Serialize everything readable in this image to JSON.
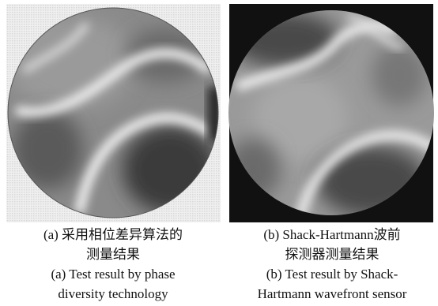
{
  "panels": [
    {
      "caption_zh": [
        "(a) 采用相位差异算法的",
        "测量结果"
      ],
      "caption_en": [
        "(a) Test result by phase",
        "diversity technology"
      ]
    },
    {
      "caption_zh": [
        "(b) Shack-Hartmann波前",
        "探测器测量结果"
      ],
      "caption_en": [
        "(b) Test result by Shack-",
        "Hartmann wavefront sensor"
      ]
    }
  ]
}
